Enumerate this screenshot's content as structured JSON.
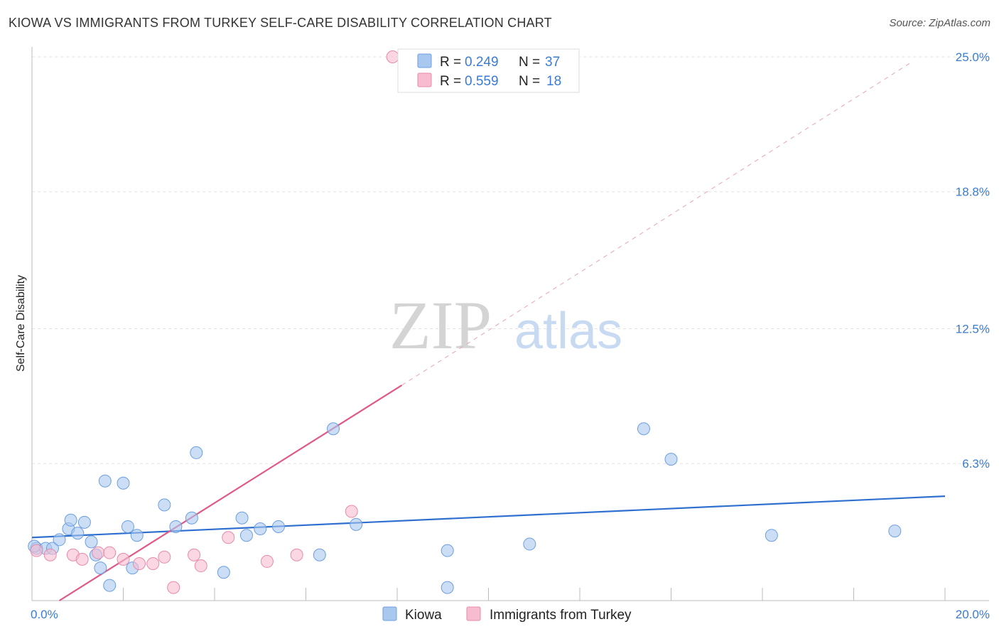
{
  "title": "KIOWA VS IMMIGRANTS FROM TURKEY SELF-CARE DISABILITY CORRELATION CHART",
  "source": "Source: ZipAtlas.com",
  "watermark": {
    "zip": "ZIP",
    "atlas": "atlas"
  },
  "chart_data": {
    "type": "scatter",
    "title": "KIOWA VS IMMIGRANTS FROM TURKEY SELF-CARE DISABILITY CORRELATION CHART",
    "ylabel": "Self-Care Disability",
    "xlabel": "",
    "xlim": [
      0,
      20
    ],
    "ylim": [
      0,
      25
    ],
    "x_tick_labels": [
      {
        "value": 0,
        "label": "0.0%"
      },
      {
        "value": 20,
        "label": "20.0%"
      }
    ],
    "y_tick_labels": [
      {
        "value": 6.3,
        "label": "6.3%"
      },
      {
        "value": 12.5,
        "label": "12.5%"
      },
      {
        "value": 18.8,
        "label": "18.8%"
      },
      {
        "value": 25.0,
        "label": "25.0%"
      }
    ],
    "legend": [
      {
        "name": "Kiowa",
        "r_label": "R = ",
        "r_value": "0.249",
        "n_label": "N = ",
        "n_value": "37",
        "color": "#a9c8ef",
        "stroke": "#6c9fe0"
      },
      {
        "name": "Immigrants from Turkey",
        "r_label": "R = ",
        "r_value": "0.559",
        "n_label": "N = ",
        "n_value": "18",
        "color": "#f7bcd0",
        "stroke": "#e88aab"
      }
    ],
    "series": [
      {
        "name": "Kiowa",
        "color": "#a9c8ef",
        "stroke": "#6c9fe0",
        "trend": {
          "x": [
            0,
            20
          ],
          "y": [
            2.9,
            4.8
          ],
          "color": "#2f6fcf"
        },
        "points": [
          [
            0.1,
            2.4
          ],
          [
            0.3,
            2.4
          ],
          [
            0.45,
            2.4
          ],
          [
            0.6,
            2.8
          ],
          [
            0.8,
            3.3
          ],
          [
            0.85,
            3.7
          ],
          [
            1.0,
            3.1
          ],
          [
            1.15,
            3.6
          ],
          [
            1.3,
            2.7
          ],
          [
            1.4,
            2.1
          ],
          [
            1.5,
            1.5
          ],
          [
            1.6,
            5.5
          ],
          [
            1.7,
            0.7
          ],
          [
            2.0,
            5.4
          ],
          [
            2.1,
            3.4
          ],
          [
            2.2,
            1.5
          ],
          [
            2.3,
            3.0
          ],
          [
            2.9,
            4.4
          ],
          [
            3.15,
            3.4
          ],
          [
            3.5,
            3.8
          ],
          [
            3.6,
            6.8
          ],
          [
            4.2,
            1.3
          ],
          [
            4.6,
            3.8
          ],
          [
            4.7,
            3.0
          ],
          [
            5.0,
            3.3
          ],
          [
            5.4,
            3.4
          ],
          [
            6.3,
            2.1
          ],
          [
            6.6,
            7.9
          ],
          [
            7.1,
            3.5
          ],
          [
            9.1,
            2.3
          ],
          [
            9.1,
            0.6
          ],
          [
            10.9,
            2.6
          ],
          [
            13.4,
            7.9
          ],
          [
            14.0,
            6.5
          ],
          [
            16.2,
            3.0
          ],
          [
            18.9,
            3.2
          ],
          [
            0.05,
            2.5
          ]
        ]
      },
      {
        "name": "Immigrants from Turkey",
        "color": "#f7bcd0",
        "stroke": "#e88aab",
        "trend": {
          "x": [
            0.6,
            8.1
          ],
          "y": [
            0.0,
            9.9
          ],
          "dashed_to": [
            19.3,
            24.8
          ],
          "color": "#e0588a"
        },
        "points": [
          [
            0.1,
            2.3
          ],
          [
            0.4,
            2.1
          ],
          [
            0.9,
            2.1
          ],
          [
            1.1,
            1.9
          ],
          [
            1.45,
            2.2
          ],
          [
            1.7,
            2.2
          ],
          [
            2.0,
            1.9
          ],
          [
            2.35,
            1.7
          ],
          [
            2.65,
            1.7
          ],
          [
            2.9,
            2.0
          ],
          [
            3.1,
            0.6
          ],
          [
            3.55,
            2.1
          ],
          [
            3.7,
            1.6
          ],
          [
            4.3,
            2.9
          ],
          [
            5.15,
            1.8
          ],
          [
            5.8,
            2.1
          ],
          [
            7.0,
            4.1
          ],
          [
            7.9,
            25.0
          ]
        ]
      }
    ]
  },
  "bottom_legend": [
    {
      "label": "Kiowa"
    },
    {
      "label": "Immigrants from Turkey"
    }
  ]
}
